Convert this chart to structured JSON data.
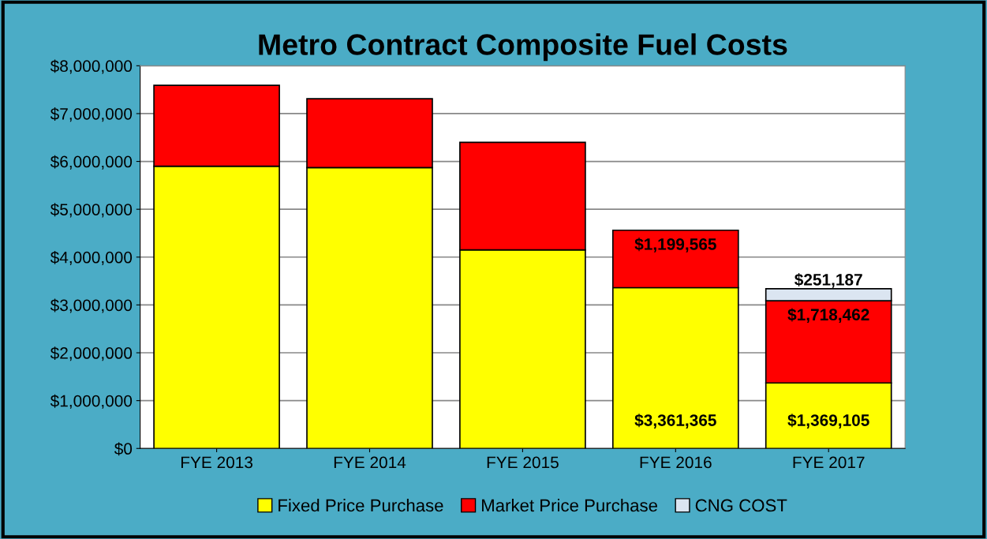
{
  "chart_data": {
    "type": "bar",
    "title": "Metro Contract Composite Fuel Costs",
    "stacked": true,
    "categories": [
      "FYE 2013",
      "FYE 2014",
      "FYE 2015",
      "FYE 2016",
      "FYE 2017"
    ],
    "series": [
      {
        "name": "Fixed Price Purchase",
        "color": "#ffff00",
        "values": [
          5900000,
          5870000,
          4150000,
          3361365,
          1369105
        ],
        "value_labels": [
          null,
          null,
          null,
          "$3,361,365",
          "$1,369,105"
        ]
      },
      {
        "name": "Market Price Purchase",
        "color": "#ff0000",
        "values": [
          1690000,
          1440000,
          2250000,
          1199565,
          1718462
        ],
        "value_labels": [
          null,
          null,
          null,
          "$1,199,565",
          "$1,718,462"
        ]
      },
      {
        "name": "CNG COST",
        "color": "#dbe5f1",
        "values": [
          null,
          null,
          null,
          null,
          251187
        ],
        "value_labels": [
          null,
          null,
          null,
          null,
          "$251,187"
        ]
      }
    ],
    "ylim": [
      0,
      8000000
    ],
    "yticks": [
      {
        "value": 0,
        "label": "$0"
      },
      {
        "value": 1000000,
        "label": "$1,000,000"
      },
      {
        "value": 2000000,
        "label": "$2,000,000"
      },
      {
        "value": 3000000,
        "label": "$3,000,000"
      },
      {
        "value": 4000000,
        "label": "$4,000,000"
      },
      {
        "value": 5000000,
        "label": "$5,000,000"
      },
      {
        "value": 6000000,
        "label": "$6,000,000"
      },
      {
        "value": 7000000,
        "label": "$7,000,000"
      },
      {
        "value": 8000000,
        "label": "$8,000,000"
      }
    ],
    "grid": "y",
    "legend": "bottom"
  }
}
